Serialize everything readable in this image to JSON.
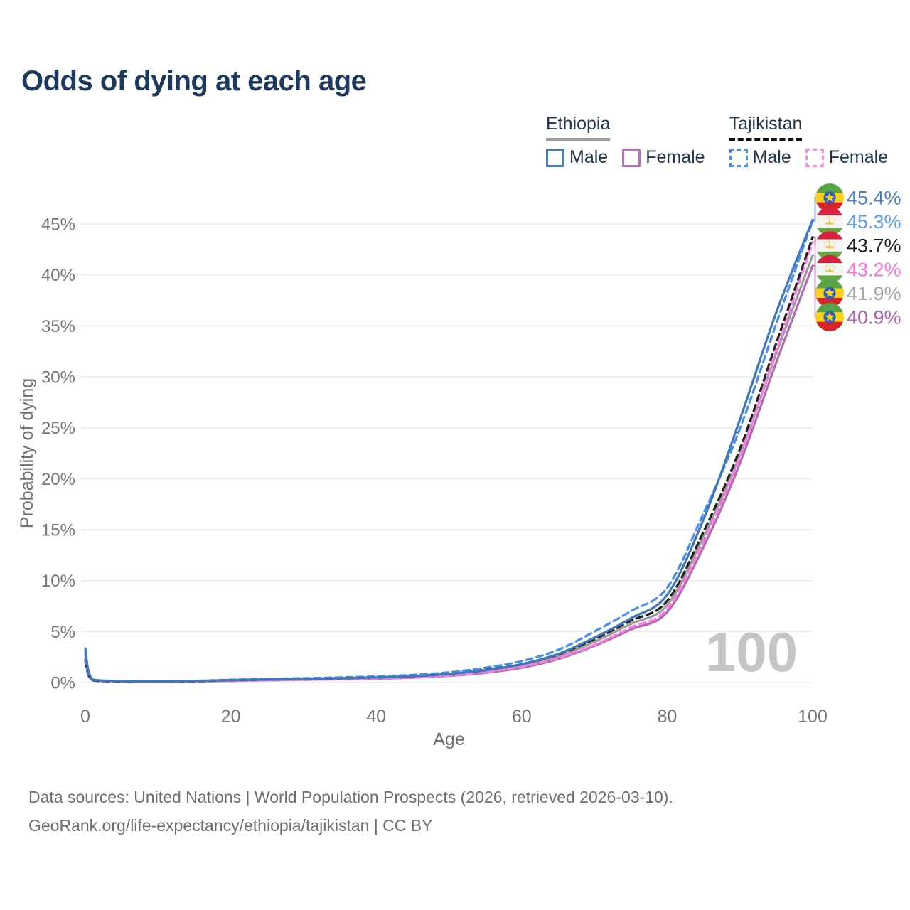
{
  "header": {
    "title": "Odds of dying at each age"
  },
  "legend": {
    "groups": [
      {
        "label": "Ethiopia",
        "underline_style": "solid",
        "underline_color": "#9e9e9e",
        "items": [
          {
            "label": "Male",
            "color": "#4a7ebb",
            "dashed": false
          },
          {
            "label": "Female",
            "color": "#bd6fbf",
            "dashed": false
          }
        ]
      },
      {
        "label": "Tajikistan",
        "underline_style": "dashed",
        "underline_color": "#111111",
        "items": [
          {
            "label": "Male",
            "color": "#4a8ff0",
            "dashed": true
          },
          {
            "label": "Female",
            "color": "#ff85e6",
            "dashed": true
          }
        ]
      }
    ]
  },
  "watermark": "100",
  "chart_data": {
    "type": "line",
    "title": "Odds of dying at each age",
    "xlabel": "Age",
    "ylabel": "Probability of dying",
    "xlim": [
      0,
      100
    ],
    "ylim": [
      0,
      45
    ],
    "x_ticks": [
      0,
      20,
      40,
      60,
      80,
      100
    ],
    "y_ticks": [
      0,
      5,
      10,
      15,
      20,
      25,
      30,
      35,
      40,
      45
    ],
    "y_tick_labels": [
      "0%",
      "5%",
      "10%",
      "15%",
      "20%",
      "25%",
      "30%",
      "35%",
      "40%",
      "45%"
    ],
    "grid": "horizontal",
    "legend_position": "top-right",
    "x": [
      0,
      1,
      5,
      10,
      15,
      20,
      25,
      30,
      35,
      40,
      45,
      50,
      55,
      60,
      65,
      70,
      75,
      80,
      85,
      90,
      95,
      100
    ],
    "series": [
      {
        "name": "Ethiopia Male",
        "country": "Ethiopia",
        "sex": "male",
        "color": "#3f77bb",
        "label_color": "#4a7ec2",
        "dash": "solid",
        "flag": "ethiopia",
        "end_label": "45.4%",
        "values": [
          3.35,
          0.3,
          0.15,
          0.12,
          0.16,
          0.24,
          0.3,
          0.36,
          0.42,
          0.5,
          0.62,
          0.85,
          1.2,
          1.8,
          2.8,
          4.4,
          6.3,
          8.6,
          16.0,
          25.8,
          36.3,
          45.4
        ]
      },
      {
        "name": "Tajikistan Male",
        "country": "Tajikistan",
        "sex": "male",
        "color": "#478df2",
        "label_color": "#5d9bf7",
        "dash": "dashed",
        "flag": "tajikistan",
        "end_label": "45.3%",
        "values": [
          2.4,
          0.25,
          0.13,
          0.11,
          0.16,
          0.27,
          0.35,
          0.42,
          0.5,
          0.6,
          0.75,
          1.0,
          1.45,
          2.1,
          3.2,
          5.0,
          7.0,
          9.3,
          16.6,
          24.9,
          35.2,
          45.3
        ]
      },
      {
        "name": "Tajikistan (both sexes)",
        "country": "Tajikistan",
        "sex": "both",
        "color": "#222222",
        "label_color": "#1f1f1f",
        "dash": "dashed",
        "flag": "tajikistan",
        "end_label": "43.7%",
        "values": [
          2.2,
          0.22,
          0.11,
          0.09,
          0.13,
          0.22,
          0.29,
          0.34,
          0.41,
          0.5,
          0.62,
          0.85,
          1.25,
          1.8,
          2.75,
          4.25,
          6.05,
          8.0,
          14.8,
          22.9,
          33.3,
          43.7
        ]
      },
      {
        "name": "Tajikistan Female",
        "country": "Tajikistan",
        "sex": "female",
        "color": "#ff7ce6",
        "label_color": "#ff6ede",
        "dash": "dashed",
        "flag": "tajikistan",
        "end_label": "43.2%",
        "values": [
          2.0,
          0.19,
          0.1,
          0.08,
          0.1,
          0.16,
          0.21,
          0.26,
          0.32,
          0.4,
          0.5,
          0.7,
          1.05,
          1.55,
          2.4,
          3.7,
          5.4,
          7.2,
          13.8,
          22.1,
          32.6,
          43.2
        ]
      },
      {
        "name": "Ethiopia (both sexes)",
        "country": "Ethiopia",
        "sex": "both",
        "color": "#9b9b9b",
        "label_color": "#a6a6a6",
        "dash": "solid",
        "flag": "ethiopia",
        "end_label": "41.9%",
        "values": [
          3.1,
          0.27,
          0.14,
          0.11,
          0.14,
          0.21,
          0.27,
          0.32,
          0.38,
          0.45,
          0.56,
          0.76,
          1.08,
          1.62,
          2.55,
          4.0,
          5.75,
          7.6,
          14.3,
          22.3,
          32.3,
          41.9
        ]
      },
      {
        "name": "Ethiopia Female",
        "country": "Ethiopia",
        "sex": "female",
        "color": "#b169b3",
        "label_color": "#aa63ad",
        "dash": "solid",
        "flag": "ethiopia",
        "end_label": "40.9%",
        "values": [
          2.85,
          0.25,
          0.13,
          0.1,
          0.12,
          0.17,
          0.22,
          0.27,
          0.32,
          0.38,
          0.48,
          0.66,
          0.95,
          1.45,
          2.3,
          3.6,
          5.2,
          6.9,
          13.3,
          21.5,
          31.4,
          40.9
        ]
      }
    ]
  },
  "footer": {
    "line1": "Data sources: United Nations | World Population Prospects (2026, retrieved 2026-03-10).",
    "line2": "GeoRank.org/life-expectancy/ethiopia/tajikistan | CC BY"
  }
}
